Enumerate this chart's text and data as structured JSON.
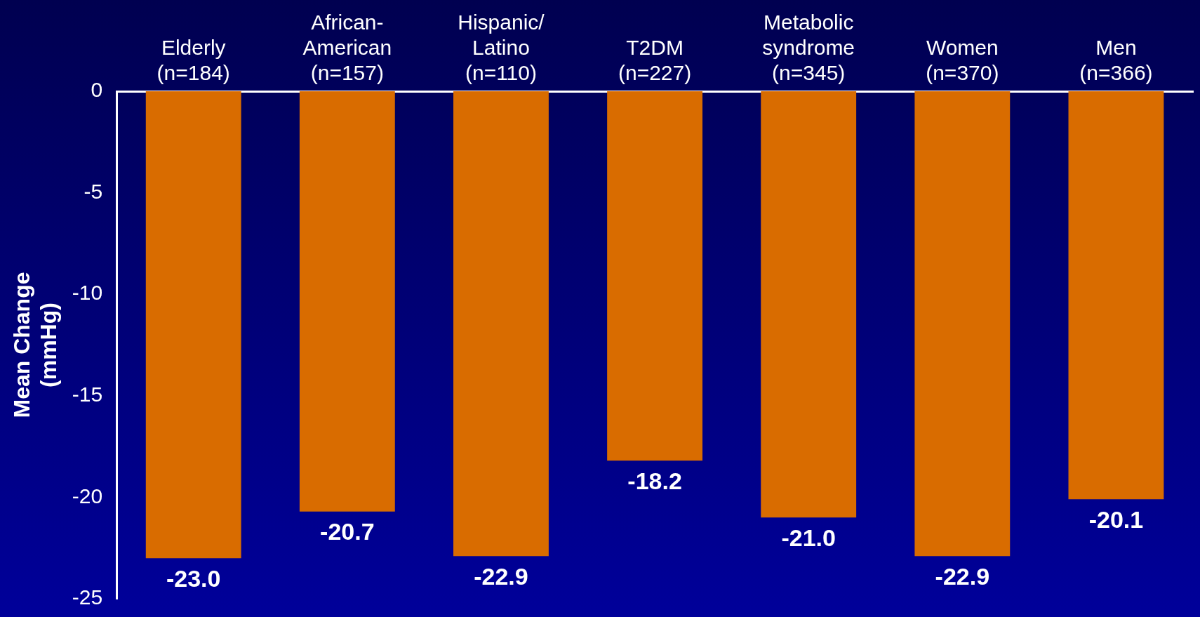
{
  "chart_data": {
    "type": "bar",
    "ylabel": "Mean Change\n(mmHg)",
    "categories": [
      "Elderly\n(n=184)",
      "African-\nAmerican\n(n=157)",
      "Hispanic/\nLatino\n(n=110)",
      "T2DM\n(n=227)",
      "Metabolic\nsyndrome\n(n=345)",
      "Women\n(n=370)",
      "Men\n(n=366)"
    ],
    "values": [
      -23.0,
      -20.7,
      -22.9,
      -18.2,
      -21.0,
      -22.9,
      -20.1
    ],
    "value_labels": [
      "-23.0",
      "-20.7",
      "-22.9",
      "-18.2",
      "-21.0",
      "-22.9",
      "-20.1"
    ],
    "color": "#d96c00",
    "ylim": [
      -25,
      0
    ],
    "yticks": [
      -25,
      -20,
      -15,
      -10,
      -5,
      0
    ],
    "grid": false,
    "legend": false
  }
}
